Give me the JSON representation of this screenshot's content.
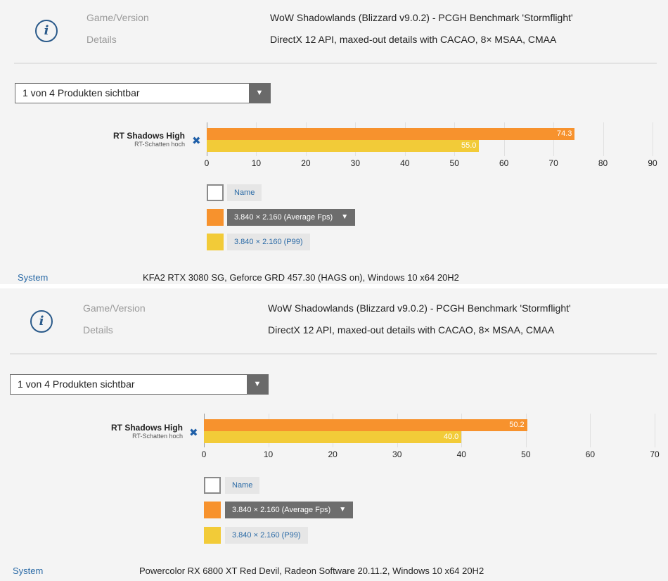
{
  "panels": [
    {
      "game_label": "Game/Version",
      "game_value": "WoW Shadowlands (Blizzard v9.0.2) - PCGH Benchmark 'Stormflight'",
      "details_label": "Details",
      "details_value": "DirectX 12 API, maxed-out details with CACAO, 8× MSAA, CMAA",
      "dropdown_text": "1 von 4 Produkten sichtbar",
      "bench_name": "RT Shadows High",
      "bench_sub": "RT-Schatten hoch",
      "legend": {
        "name_label": "Name",
        "avg_label": "3.840 × 2.160 (Average Fps)",
        "p99_label": "3.840 × 2.160 (P99)"
      },
      "system_label": "System",
      "system_value": "KFA2 RTX 3080 SG, Geforce GRD 457.30 (HAGS on), Windows 10 x64 20H2"
    },
    {
      "game_label": "Game/Version",
      "game_value": "WoW Shadowlands (Blizzard v9.0.2) - PCGH Benchmark 'Stormflight'",
      "details_label": "Details",
      "details_value": "DirectX 12 API, maxed-out details with CACAO, 8× MSAA, CMAA",
      "dropdown_text": "1 von 4 Produkten sichtbar",
      "bench_name": "RT Shadows High",
      "bench_sub": "RT-Schatten hoch",
      "legend": {
        "name_label": "Name",
        "avg_label": "3.840 × 2.160 (Average Fps)",
        "p99_label": "3.840 × 2.160 (P99)"
      },
      "system_label": "System",
      "system_value": "Powercolor RX 6800 XT Red Devil, Radeon Software 20.11.2, Windows 10 x64 20H2"
    }
  ],
  "colors": {
    "avg": "#f7922d",
    "p99": "#f2cb38",
    "accent": "#2a6aa6"
  },
  "icons": {
    "info": "info-icon",
    "remove": "close-x-icon",
    "dropdown": "triangle-down-icon"
  },
  "chart_data": [
    {
      "type": "bar",
      "orientation": "horizontal",
      "categories": [
        "RT Shadows High"
      ],
      "series": [
        {
          "name": "3.840 × 2.160 (Average Fps)",
          "values": [
            74.3
          ]
        },
        {
          "name": "3.840 × 2.160 (P99)",
          "values": [
            55.0
          ]
        }
      ],
      "xlim": [
        0,
        90
      ],
      "ticks": [
        "0",
        "10",
        "20",
        "30",
        "40",
        "50",
        "60",
        "70",
        "80",
        "90"
      ],
      "data_labels": [
        "74.3",
        "55.0"
      ],
      "grid": true
    },
    {
      "type": "bar",
      "orientation": "horizontal",
      "categories": [
        "RT Shadows High"
      ],
      "series": [
        {
          "name": "3.840 × 2.160 (Average Fps)",
          "values": [
            50.2
          ]
        },
        {
          "name": "3.840 × 2.160 (P99)",
          "values": [
            40.0
          ]
        }
      ],
      "xlim": [
        0,
        70
      ],
      "ticks": [
        "0",
        "10",
        "20",
        "30",
        "40",
        "50",
        "60",
        "70"
      ],
      "data_labels": [
        "50.2",
        "40.0"
      ],
      "grid": true
    }
  ]
}
